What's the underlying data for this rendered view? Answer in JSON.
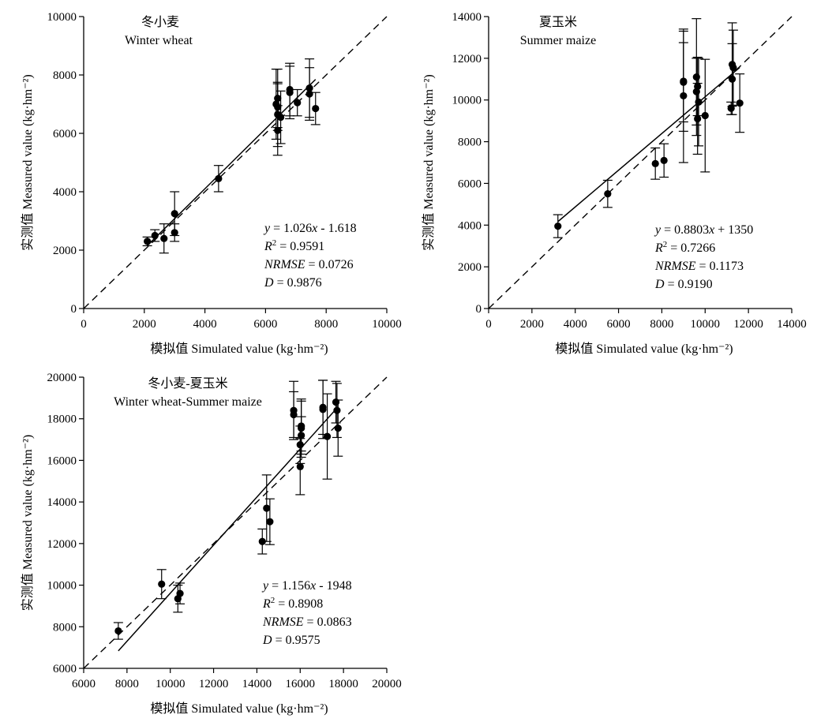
{
  "chart_data": [
    {
      "type": "scatter",
      "title": "冬小麦",
      "subtitle": "Winter wheat",
      "xlabel": "模拟值 Simulated value (kg·hm⁻²)",
      "ylabel": "实测值 Measured value (kg·hm⁻²)",
      "xlim": [
        0,
        10000
      ],
      "ylim": [
        0,
        10000
      ],
      "xticks": [
        0,
        2000,
        4000,
        6000,
        8000,
        10000
      ],
      "yticks": [
        0,
        2000,
        4000,
        6000,
        8000,
        10000
      ],
      "fit": {
        "slope": 1.026,
        "intercept": -1.618
      },
      "stats": {
        "eq_y": "y",
        "eq_rest": " = 1.026x - 1.618",
        "r2_label": "R",
        "r2_value": " = 0.9591",
        "nrmse_label": "NRMSE",
        "nrmse_value": " = 0.0726",
        "d_label": "D",
        "d_value": " = 0.9876"
      },
      "points": [
        {
          "x": 2100,
          "y": 2300,
          "err": 150
        },
        {
          "x": 2350,
          "y": 2500,
          "err": 200
        },
        {
          "x": 2650,
          "y": 2400,
          "err": 500
        },
        {
          "x": 3000,
          "y": 3250,
          "err": 750
        },
        {
          "x": 3000,
          "y": 2600,
          "err": 300
        },
        {
          "x": 4450,
          "y": 4450,
          "err": 450
        },
        {
          "x": 6350,
          "y": 7000,
          "err": 1200
        },
        {
          "x": 6400,
          "y": 6650,
          "err": 1100
        },
        {
          "x": 6400,
          "y": 6900,
          "err": 800
        },
        {
          "x": 6400,
          "y": 7200,
          "err": 1000
        },
        {
          "x": 6400,
          "y": 6100,
          "err": 850
        },
        {
          "x": 6500,
          "y": 6550,
          "err": 900
        },
        {
          "x": 6800,
          "y": 7400,
          "err": 900
        },
        {
          "x": 6800,
          "y": 7500,
          "err": 900
        },
        {
          "x": 7050,
          "y": 7050,
          "err": 450
        },
        {
          "x": 7450,
          "y": 7550,
          "err": 1000
        },
        {
          "x": 7450,
          "y": 7350,
          "err": 900
        },
        {
          "x": 7650,
          "y": 6850,
          "err": 550
        }
      ]
    },
    {
      "type": "scatter",
      "title": "夏玉米",
      "subtitle": "Summer maize",
      "xlabel": "模拟值 Simulated value (kg·hm⁻²)",
      "ylabel": "实测值 Measured value (kg·hm⁻²)",
      "xlim": [
        0,
        14000
      ],
      "ylim": [
        0,
        14000
      ],
      "xticks": [
        0,
        2000,
        4000,
        6000,
        8000,
        10000,
        12000,
        14000
      ],
      "yticks": [
        0,
        2000,
        4000,
        6000,
        8000,
        10000,
        12000,
        14000
      ],
      "fit": {
        "slope": 0.8803,
        "intercept": 1350
      },
      "stats": {
        "eq_y": "y",
        "eq_rest": " = 0.8803x + 1350",
        "r2_label": "R",
        "r2_value": " = 0.7266",
        "nrmse_label": "NRMSE",
        "nrmse_value": " = 0.1173",
        "d_label": "D",
        "d_value": " = 0.9190"
      },
      "points": [
        {
          "x": 3200,
          "y": 3950,
          "err": 550
        },
        {
          "x": 5500,
          "y": 5500,
          "err": 650
        },
        {
          "x": 7700,
          "y": 6950,
          "err": 750
        },
        {
          "x": 8100,
          "y": 7100,
          "err": 800
        },
        {
          "x": 9000,
          "y": 10900,
          "err": 2400
        },
        {
          "x": 9000,
          "y": 10850,
          "err": 1900
        },
        {
          "x": 9000,
          "y": 10200,
          "err": 3200
        },
        {
          "x": 9600,
          "y": 11100,
          "err": 2800
        },
        {
          "x": 9600,
          "y": 10400,
          "err": 1600
        },
        {
          "x": 9650,
          "y": 10650,
          "err": 1400
        },
        {
          "x": 9700,
          "y": 9900,
          "err": 2100
        },
        {
          "x": 9650,
          "y": 9100,
          "err": 1700
        },
        {
          "x": 10000,
          "y": 9250,
          "err": 2700
        },
        {
          "x": 11250,
          "y": 11700,
          "err": 2000
        },
        {
          "x": 11300,
          "y": 11550,
          "err": 1800
        },
        {
          "x": 11250,
          "y": 11000,
          "err": 1700
        },
        {
          "x": 11200,
          "y": 9600,
          "err": 300
        },
        {
          "x": 11600,
          "y": 9850,
          "err": 1400
        }
      ]
    },
    {
      "type": "scatter",
      "title": "冬小麦-夏玉米",
      "subtitle": "Winter wheat-Summer maize",
      "xlabel": "模拟值 Simulated value (kg·hm⁻²)",
      "ylabel": "实测值 Measured value (kg·hm⁻²)",
      "xlim": [
        6000,
        20000
      ],
      "ylim": [
        6000,
        20000
      ],
      "xticks": [
        6000,
        8000,
        10000,
        12000,
        14000,
        16000,
        18000,
        20000
      ],
      "yticks": [
        6000,
        8000,
        10000,
        12000,
        14000,
        16000,
        18000,
        20000
      ],
      "fit": {
        "slope": 1.156,
        "intercept": -1948
      },
      "stats": {
        "eq_y": "y",
        "eq_rest": " = 1.156x - 1948",
        "r2_label": "R",
        "r2_value": " = 0.8908",
        "nrmse_label": "NRMSE",
        "nrmse_value": " = 0.0863",
        "d_label": "D",
        "d_value": " = 0.9575"
      },
      "points": [
        {
          "x": 7600,
          "y": 7800,
          "err": 400
        },
        {
          "x": 9600,
          "y": 10050,
          "err": 700
        },
        {
          "x": 10350,
          "y": 9350,
          "err": 650
        },
        {
          "x": 10450,
          "y": 9600,
          "err": 500
        },
        {
          "x": 14250,
          "y": 12100,
          "err": 600
        },
        {
          "x": 14450,
          "y": 13700,
          "err": 1600
        },
        {
          "x": 14600,
          "y": 13050,
          "err": 1100
        },
        {
          "x": 15700,
          "y": 18400,
          "err": 1400
        },
        {
          "x": 15700,
          "y": 18200,
          "err": 1100
        },
        {
          "x": 16050,
          "y": 17550,
          "err": 1400
        },
        {
          "x": 16050,
          "y": 17200,
          "err": 900
        },
        {
          "x": 16050,
          "y": 17650,
          "err": 1200
        },
        {
          "x": 16000,
          "y": 16750,
          "err": 900
        },
        {
          "x": 16000,
          "y": 15700,
          "err": 1350
        },
        {
          "x": 17050,
          "y": 18550,
          "err": 1300
        },
        {
          "x": 17050,
          "y": 18450,
          "err": 1400
        },
        {
          "x": 17250,
          "y": 17150,
          "err": 2050
        },
        {
          "x": 17650,
          "y": 18800,
          "err": 1000
        },
        {
          "x": 17700,
          "y": 18400,
          "err": 1300
        },
        {
          "x": 17750,
          "y": 17550,
          "err": 1350
        }
      ]
    }
  ]
}
